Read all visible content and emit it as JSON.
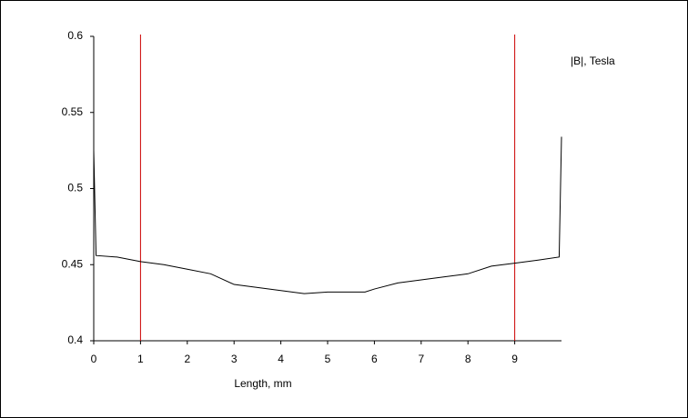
{
  "chart_data": {
    "type": "line",
    "x_label": "Length, mm",
    "legend_label": "|B|, Tesla",
    "x": [
      0,
      0.05,
      0.5,
      1,
      1.5,
      2,
      2.5,
      3,
      3.5,
      4,
      4.5,
      5,
      5.5,
      5.8,
      6,
      6.5,
      7,
      7.5,
      8,
      8.5,
      9,
      9.5,
      9.95,
      10
    ],
    "series": [
      {
        "color": "#000000",
        "values": [
          0.525,
          0.456,
          0.455,
          0.452,
          0.45,
          0.447,
          0.444,
          0.437,
          0.435,
          0.433,
          0.431,
          0.432,
          0.432,
          0.432,
          0.434,
          0.438,
          0.44,
          0.442,
          0.444,
          0.449,
          0.451,
          0.453,
          0.455,
          0.534
        ]
      }
    ],
    "markers": {
      "color": "#cc0000",
      "x": [
        1,
        9
      ]
    },
    "xlim": [
      0,
      10
    ],
    "xticks": [
      0,
      1,
      2,
      3,
      4,
      5,
      6,
      7,
      8,
      9
    ],
    "ylim": [
      0.4,
      0.6
    ],
    "yticks": [
      0.4,
      0.45,
      0.5,
      0.55,
      0.6
    ]
  }
}
